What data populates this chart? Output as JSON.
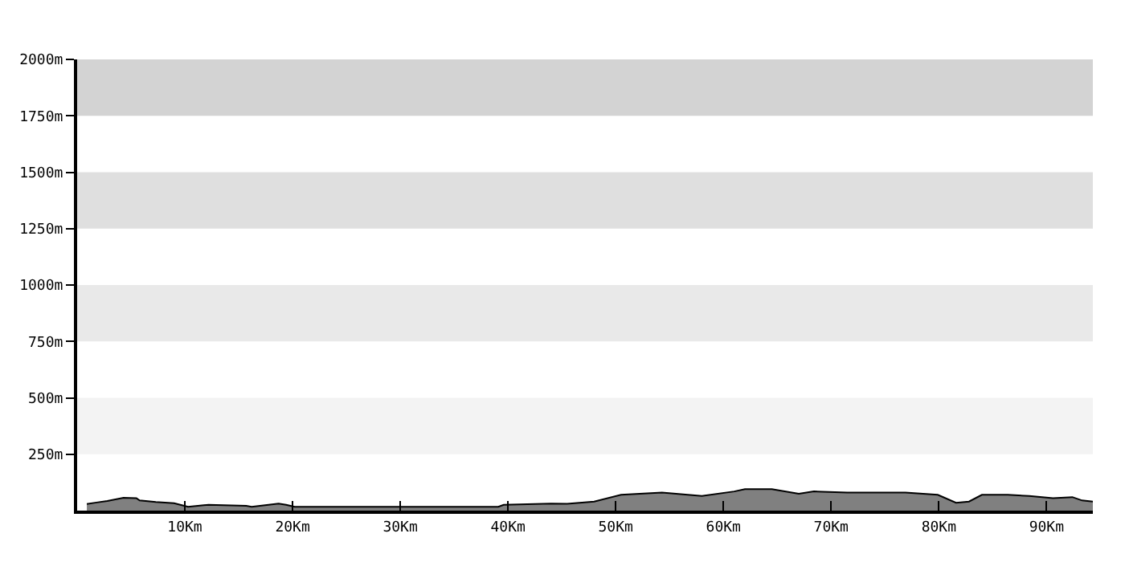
{
  "chart_data": {
    "type": "area",
    "color": "#808080",
    "x": [
      0.9,
      1.8,
      2.8,
      4.3,
      5.5,
      5.8,
      7.3,
      9.0,
      10.3,
      12.2,
      15.7,
      16.2,
      18.7,
      19.4,
      20.2,
      30.0,
      39.1,
      39.6,
      44.0,
      45.5,
      48.0,
      50.5,
      54.3,
      58.0,
      61.0,
      62.0,
      64.5,
      67.0,
      68.4,
      71.5,
      76.9,
      79.9,
      81.6,
      82.8,
      84.0,
      86.4,
      88.4,
      90.6,
      92.4,
      93.3,
      94.3
    ],
    "values": [
      29,
      36,
      43,
      57,
      55,
      45,
      38,
      33,
      17,
      26,
      21,
      17,
      31,
      26,
      17,
      17,
      17,
      26,
      31,
      30,
      40,
      70,
      80,
      65,
      85,
      95,
      95,
      75,
      85,
      80,
      80,
      70,
      35,
      40,
      70,
      70,
      65,
      55,
      60,
      45,
      40
    ],
    "xlim": [
      0,
      94.3
    ],
    "xticks": [
      {
        "value": 10,
        "label": "10Km"
      },
      {
        "value": 20,
        "label": "20Km"
      },
      {
        "value": 30,
        "label": "30Km"
      },
      {
        "value": 40,
        "label": "40Km"
      },
      {
        "value": 50,
        "label": "50Km"
      },
      {
        "value": 60,
        "label": "60Km"
      },
      {
        "value": 70,
        "label": "70Km"
      },
      {
        "value": 80,
        "label": "80Km"
      },
      {
        "value": 90,
        "label": "90Km"
      }
    ],
    "ylim": [
      0,
      2000
    ],
    "yticks": [
      {
        "value": 250,
        "label": "250m"
      },
      {
        "value": 500,
        "label": "500m"
      },
      {
        "value": 750,
        "label": "750m"
      },
      {
        "value": 1000,
        "label": "1000m"
      },
      {
        "value": 1250,
        "label": "1250m"
      },
      {
        "value": 1500,
        "label": "1500m"
      },
      {
        "value": 1750,
        "label": "1750m"
      },
      {
        "value": 2000,
        "label": "2000m"
      }
    ],
    "bands": [
      {
        "axis": "y",
        "from": 250,
        "to": 500,
        "color": "#f3f3f3"
      },
      {
        "axis": "y",
        "from": 750,
        "to": 1000,
        "color": "#e9e9e9"
      },
      {
        "axis": "y",
        "from": 1250,
        "to": 1500,
        "color": "#dfdfdf"
      },
      {
        "axis": "y",
        "from": 1750,
        "to": 2000,
        "color": "#d3d3d3"
      }
    ],
    "grid": false,
    "legend": false
  }
}
